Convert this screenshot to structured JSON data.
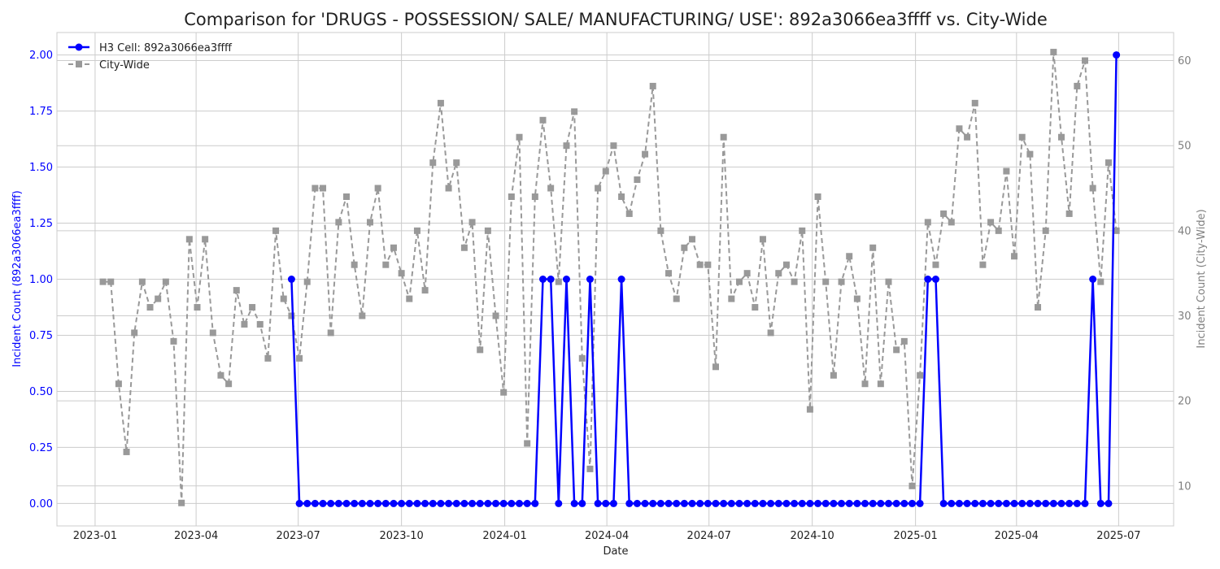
{
  "chart_data": {
    "type": "line",
    "title": "Comparison for 'DRUGS - POSSESSION/ SALE/ MANUFACTURING/ USE': 892a3066ea3ffff vs. City-Wide",
    "xlabel": "Date",
    "ylabel_left": "Incident Count (892a3066ea3ffff)",
    "ylabel_right": "Incident Count (City-Wide)",
    "x_ticks": [
      "2023-01",
      "2023-04",
      "2023-07",
      "2023-10",
      "2024-01",
      "2024-04",
      "2024-07",
      "2024-10",
      "2025-01",
      "2025-04",
      "2025-07"
    ],
    "y_left_ticks": [
      "0.00",
      "0.25",
      "0.50",
      "0.75",
      "1.00",
      "1.25",
      "1.50",
      "1.75",
      "2.00"
    ],
    "y_right_ticks": [
      "10",
      "20",
      "30",
      "40",
      "50",
      "60"
    ],
    "ylim_left": [
      -0.1,
      2.1
    ],
    "ylim_right": [
      5.3,
      63.3
    ],
    "grid": true,
    "legend_position": "top-left",
    "colors": {
      "cell": "#0000ff",
      "city": "#999999",
      "left_axis_text": "#0000ff",
      "right_axis_text": "#808080",
      "grid": "#cccccc"
    },
    "series": [
      {
        "name": "H3 Cell: 892a3066ea3ffff",
        "axis": "left",
        "x": [
          "2023-06-25",
          "2023-07-02",
          "2023-07-09",
          "2023-07-16",
          "2023-07-23",
          "2023-07-30",
          "2023-08-06",
          "2023-08-13",
          "2023-08-20",
          "2023-08-27",
          "2023-09-03",
          "2023-09-10",
          "2023-09-17",
          "2023-09-24",
          "2023-10-01",
          "2023-10-08",
          "2023-10-15",
          "2023-10-22",
          "2023-10-29",
          "2023-11-05",
          "2023-11-12",
          "2023-11-19",
          "2023-11-26",
          "2023-12-03",
          "2023-12-10",
          "2023-12-17",
          "2023-12-24",
          "2023-12-31",
          "2024-01-07",
          "2024-01-14",
          "2024-01-21",
          "2024-01-28",
          "2024-02-04",
          "2024-02-11",
          "2024-02-18",
          "2024-02-25",
          "2024-03-03",
          "2024-03-10",
          "2024-03-17",
          "2024-03-24",
          "2024-03-31",
          "2024-04-07",
          "2024-04-14",
          "2024-04-21",
          "2024-04-28",
          "2024-05-05",
          "2024-05-12",
          "2024-05-19",
          "2024-05-26",
          "2024-06-02",
          "2024-06-09",
          "2024-06-16",
          "2024-06-23",
          "2024-06-30",
          "2024-07-07",
          "2024-07-14",
          "2024-07-21",
          "2024-07-28",
          "2024-08-04",
          "2024-08-11",
          "2024-08-18",
          "2024-08-25",
          "2024-09-01",
          "2024-09-08",
          "2024-09-15",
          "2024-09-22",
          "2024-09-29",
          "2024-10-06",
          "2024-10-13",
          "2024-10-20",
          "2024-10-27",
          "2024-11-03",
          "2024-11-10",
          "2024-11-17",
          "2024-11-24",
          "2024-12-01",
          "2024-12-08",
          "2024-12-15",
          "2024-12-22",
          "2024-12-29",
          "2025-01-05",
          "2025-01-12",
          "2025-01-19",
          "2025-01-26",
          "2025-02-02",
          "2025-02-09",
          "2025-02-16",
          "2025-02-23",
          "2025-03-02",
          "2025-03-09",
          "2025-03-16",
          "2025-03-23",
          "2025-03-30",
          "2025-04-06",
          "2025-04-13",
          "2025-04-20",
          "2025-04-27",
          "2025-05-04",
          "2025-05-11",
          "2025-05-18",
          "2025-05-25",
          "2025-06-01",
          "2025-06-08",
          "2025-06-15",
          "2025-06-22",
          "2025-06-29"
        ],
        "values": [
          1,
          0,
          0,
          0,
          0,
          0,
          0,
          0,
          0,
          0,
          0,
          0,
          0,
          0,
          0,
          0,
          0,
          0,
          0,
          0,
          0,
          0,
          0,
          0,
          0,
          0,
          0,
          0,
          0,
          0,
          0,
          0,
          1,
          1,
          0,
          1,
          0,
          0,
          1,
          0,
          0,
          0,
          1,
          0,
          0,
          0,
          0,
          0,
          0,
          0,
          0,
          0,
          0,
          0,
          0,
          0,
          0,
          0,
          0,
          0,
          0,
          0,
          0,
          0,
          0,
          0,
          0,
          0,
          0,
          0,
          0,
          0,
          0,
          0,
          0,
          0,
          0,
          0,
          0,
          0,
          0,
          1,
          1,
          0,
          0,
          0,
          0,
          0,
          0,
          0,
          0,
          0,
          0,
          0,
          0,
          0,
          0,
          0,
          0,
          0,
          0,
          0,
          1,
          0,
          0,
          2
        ]
      },
      {
        "name": "City-Wide",
        "axis": "right",
        "x": [
          "2023-01-08",
          "2023-01-15",
          "2023-01-22",
          "2023-01-29",
          "2023-02-05",
          "2023-02-12",
          "2023-02-19",
          "2023-02-26",
          "2023-03-05",
          "2023-03-12",
          "2023-03-19",
          "2023-03-26",
          "2023-04-02",
          "2023-04-09",
          "2023-04-16",
          "2023-04-23",
          "2023-04-30",
          "2023-05-07",
          "2023-05-14",
          "2023-05-21",
          "2023-05-28",
          "2023-06-04",
          "2023-06-11",
          "2023-06-18",
          "2023-06-25",
          "2023-07-02",
          "2023-07-09",
          "2023-07-16",
          "2023-07-23",
          "2023-07-30",
          "2023-08-06",
          "2023-08-13",
          "2023-08-20",
          "2023-08-27",
          "2023-09-03",
          "2023-09-10",
          "2023-09-17",
          "2023-09-24",
          "2023-10-01",
          "2023-10-08",
          "2023-10-15",
          "2023-10-22",
          "2023-10-29",
          "2023-11-05",
          "2023-11-12",
          "2023-11-19",
          "2023-11-26",
          "2023-12-03",
          "2023-12-10",
          "2023-12-17",
          "2023-12-24",
          "2023-12-31",
          "2024-01-07",
          "2024-01-14",
          "2024-01-21",
          "2024-01-28",
          "2024-02-04",
          "2024-02-11",
          "2024-02-18",
          "2024-02-25",
          "2024-03-03",
          "2024-03-10",
          "2024-03-17",
          "2024-03-24",
          "2024-03-31",
          "2024-04-07",
          "2024-04-14",
          "2024-04-21",
          "2024-04-28",
          "2024-05-05",
          "2024-05-12",
          "2024-05-19",
          "2024-05-26",
          "2024-06-02",
          "2024-06-09",
          "2024-06-16",
          "2024-06-23",
          "2024-06-30",
          "2024-07-07",
          "2024-07-14",
          "2024-07-21",
          "2024-07-28",
          "2024-08-04",
          "2024-08-11",
          "2024-08-18",
          "2024-08-25",
          "2024-09-01",
          "2024-09-08",
          "2024-09-15",
          "2024-09-22",
          "2024-09-29",
          "2024-10-06",
          "2024-10-13",
          "2024-10-20",
          "2024-10-27",
          "2024-11-03",
          "2024-11-10",
          "2024-11-17",
          "2024-11-24",
          "2024-12-01",
          "2024-12-08",
          "2024-12-15",
          "2024-12-22",
          "2024-12-29",
          "2025-01-05",
          "2025-01-12",
          "2025-01-19",
          "2025-01-26",
          "2025-02-02",
          "2025-02-09",
          "2025-02-16",
          "2025-02-23",
          "2025-03-02",
          "2025-03-09",
          "2025-03-16",
          "2025-03-23",
          "2025-03-30",
          "2025-04-06",
          "2025-04-13",
          "2025-04-20",
          "2025-04-27",
          "2025-05-04",
          "2025-05-11",
          "2025-05-18",
          "2025-05-25",
          "2025-06-01",
          "2025-06-08",
          "2025-06-15",
          "2025-06-22",
          "2025-06-29"
        ],
        "values": [
          34,
          34,
          22,
          14,
          28,
          34,
          31,
          32,
          34,
          27,
          8,
          39,
          31,
          39,
          28,
          23,
          22,
          33,
          29,
          31,
          29,
          25,
          40,
          32,
          30,
          25,
          34,
          45,
          45,
          28,
          41,
          44,
          36,
          30,
          41,
          45,
          36,
          38,
          35,
          32,
          40,
          33,
          48,
          55,
          45,
          48,
          38,
          41,
          26,
          40,
          30,
          21,
          44,
          51,
          15,
          44,
          53,
          45,
          34,
          50,
          54,
          25,
          12,
          45,
          47,
          50,
          44,
          42,
          46,
          49,
          57,
          40,
          35,
          32,
          38,
          39,
          36,
          36,
          24,
          51,
          32,
          34,
          35,
          31,
          39,
          28,
          35,
          36,
          34,
          40,
          19,
          44,
          34,
          23,
          34,
          37,
          32,
          22,
          38,
          22,
          34,
          26,
          27,
          10,
          23,
          41,
          36,
          42,
          41,
          52,
          51,
          55,
          36,
          41,
          40,
          47,
          37,
          51,
          49,
          31,
          40,
          61,
          51,
          42,
          57,
          60,
          45,
          34,
          48,
          40
        ]
      }
    ]
  }
}
